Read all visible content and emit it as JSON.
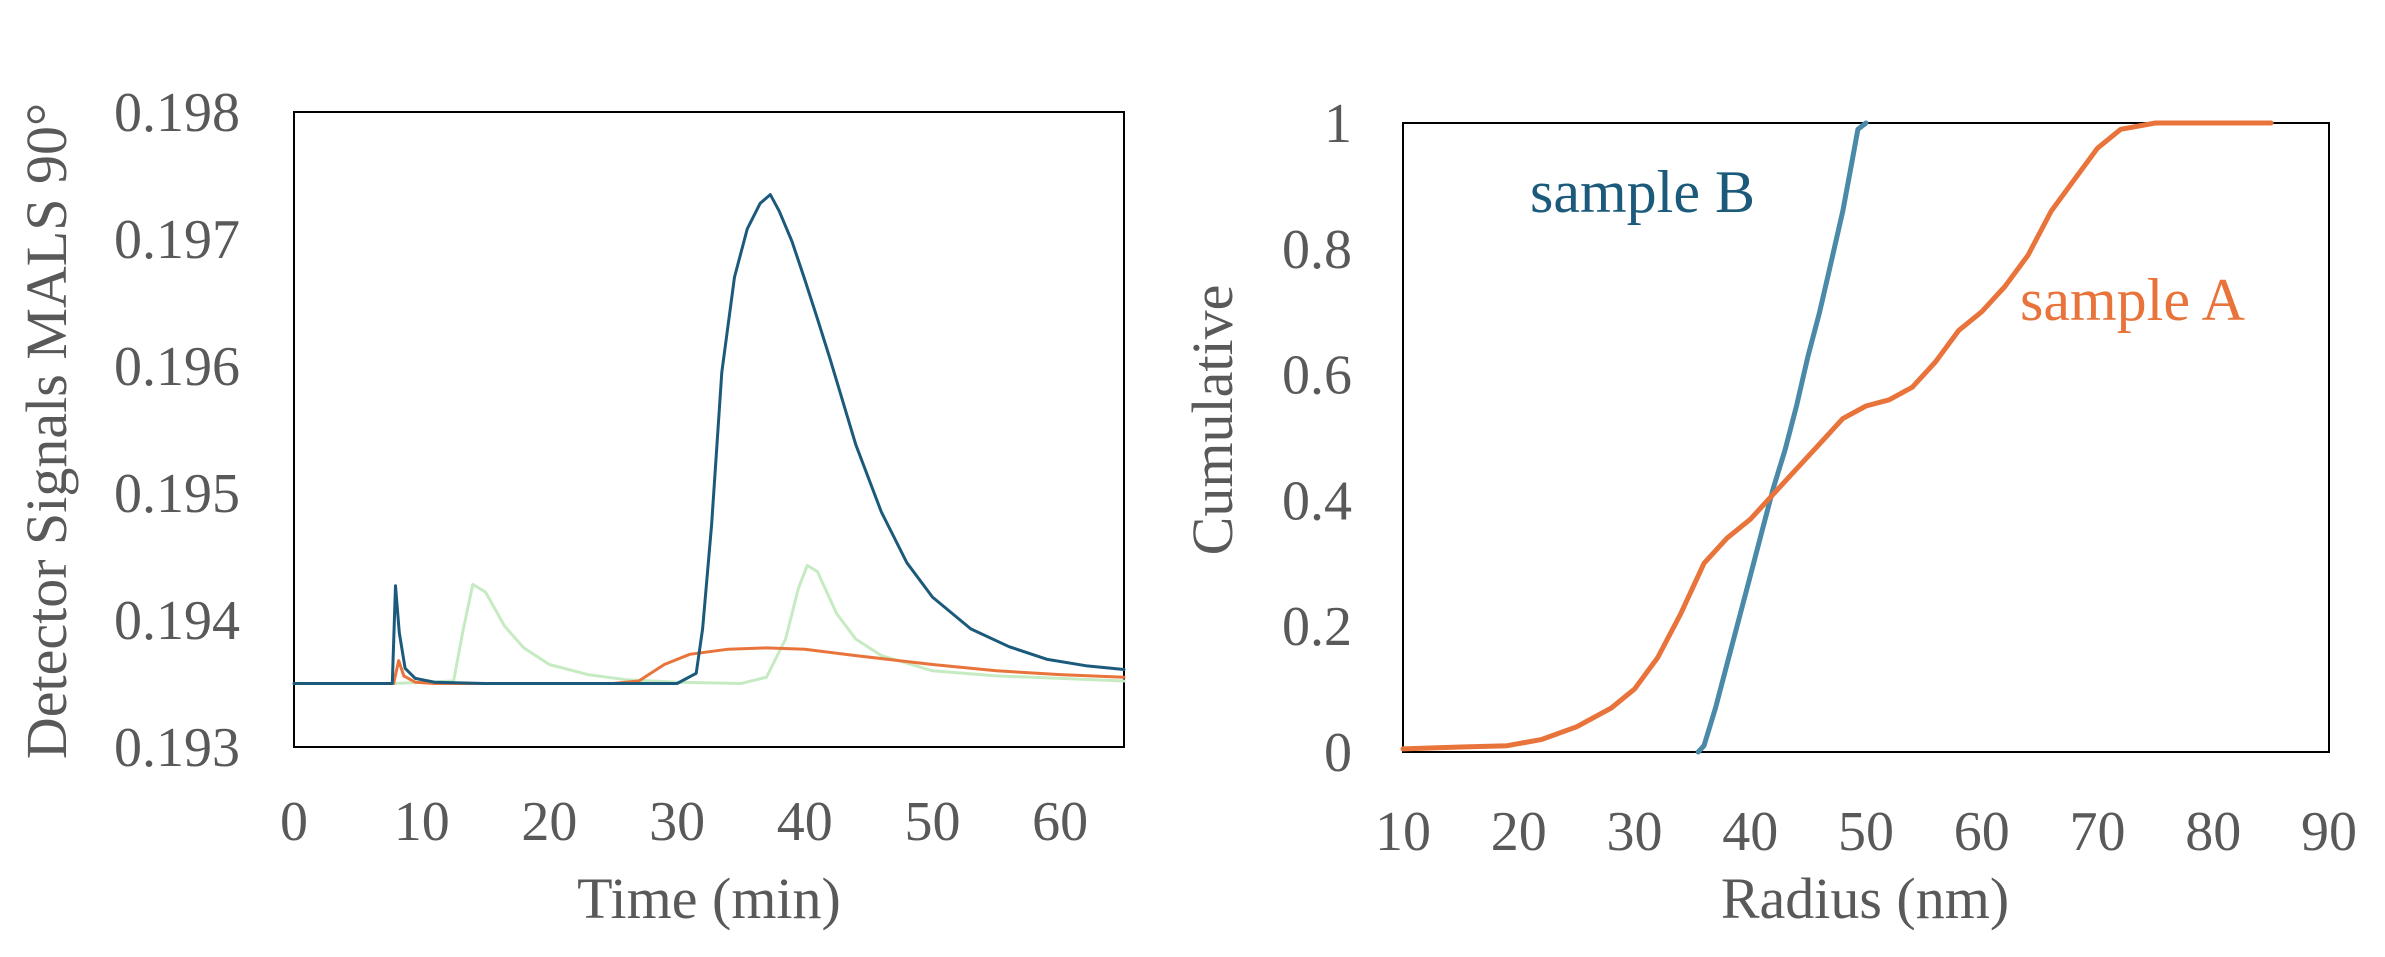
{
  "colors": {
    "dark_blue": "#1b5a7a",
    "orange": "#e8743b",
    "light_green": "#c6ebc2",
    "steel_blue": "#4a89a8",
    "text": "#595959"
  },
  "chart_data": [
    {
      "type": "line",
      "xlabel": "Time (min)",
      "ylabel": "Detector Signals MALS 90°",
      "xlim": [
        0,
        65
      ],
      "ylim": [
        0.193,
        0.198
      ],
      "x_ticks": [
        "0",
        "10",
        "20",
        "30",
        "40",
        "50",
        "60"
      ],
      "y_ticks": [
        "0.193",
        "0.194",
        "0.195",
        "0.196",
        "0.197",
        "0.198"
      ],
      "x_tick_values": [
        0,
        10,
        20,
        30,
        40,
        50,
        60
      ],
      "y_tick_values": [
        0.193,
        0.194,
        0.195,
        0.196,
        0.197,
        0.198
      ],
      "grid": false,
      "series": [
        {
          "color": "#c6ebc2",
          "x": [
            0,
            7.8,
            12.5,
            13.2,
            14.0,
            15.0,
            16.5,
            18.0,
            20.0,
            23.0,
            26.0,
            30.0,
            35.0,
            37.0,
            38.5,
            39.5,
            40.2,
            41.0,
            42.5,
            44.0,
            46.0,
            50.0,
            55.0,
            60.0,
            65.0
          ],
          "y": [
            0.1935,
            0.1935,
            0.19352,
            0.1939,
            0.19428,
            0.19422,
            0.19395,
            0.19378,
            0.19365,
            0.19357,
            0.19353,
            0.19351,
            0.1935,
            0.19355,
            0.19385,
            0.19425,
            0.19443,
            0.19438,
            0.19405,
            0.19385,
            0.19372,
            0.1936,
            0.19356,
            0.19354,
            0.19352
          ]
        },
        {
          "color": "#e8743b",
          "x": [
            0,
            7.8,
            8.2,
            8.6,
            9.5,
            11.0,
            15.0,
            20.0,
            25.0,
            27.0,
            29.0,
            31.0,
            34.0,
            37.0,
            40.0,
            44.0,
            50.0,
            55.0,
            60.0,
            65.0
          ],
          "y": [
            0.1935,
            0.1935,
            0.19368,
            0.19356,
            0.19351,
            0.1935,
            0.1935,
            0.1935,
            0.1935,
            0.19352,
            0.19365,
            0.19373,
            0.19377,
            0.19378,
            0.19377,
            0.19372,
            0.19365,
            0.1936,
            0.19357,
            0.19355
          ]
        },
        {
          "color": "#1b5a7a",
          "x": [
            0,
            7.7,
            7.95,
            8.25,
            8.7,
            9.5,
            11.0,
            15.0,
            20.0,
            25.0,
            30.0,
            31.5,
            32.0,
            32.7,
            33.5,
            34.5,
            35.5,
            36.5,
            37.3,
            38.0,
            39.0,
            40.0,
            41.0,
            42.0,
            44.0,
            46.0,
            48.0,
            50.0,
            53.0,
            56.0,
            59.0,
            62.0,
            65.0
          ],
          "y": [
            0.1935,
            0.1935,
            0.19427,
            0.1939,
            0.19362,
            0.19354,
            0.19351,
            0.1935,
            0.1935,
            0.1935,
            0.1935,
            0.19358,
            0.19393,
            0.19475,
            0.19595,
            0.1967,
            0.19708,
            0.19728,
            0.19735,
            0.19722,
            0.19698,
            0.19668,
            0.19637,
            0.19605,
            0.19538,
            0.19485,
            0.19445,
            0.19418,
            0.19393,
            0.19379,
            0.19369,
            0.19364,
            0.19361
          ]
        }
      ]
    },
    {
      "type": "line",
      "xlabel": "Radius (nm)",
      "ylabel": "Cumulative",
      "xlim": [
        10,
        90
      ],
      "ylim": [
        0,
        1
      ],
      "x_ticks": [
        "10",
        "20",
        "30",
        "40",
        "50",
        "60",
        "70",
        "80",
        "90"
      ],
      "y_ticks": [
        "0",
        "0.2",
        "0.4",
        "0.6",
        "0.8",
        "1"
      ],
      "x_tick_values": [
        10,
        20,
        30,
        40,
        50,
        60,
        70,
        80,
        90
      ],
      "y_tick_values": [
        0,
        0.2,
        0.4,
        0.6,
        0.8,
        1
      ],
      "grid": false,
      "annotations": [
        "sample B",
        "sample A"
      ],
      "series": [
        {
          "name": "sample B",
          "color": "#4a89a8",
          "x": [
            35.5,
            36.0,
            37.0,
            38.0,
            39.0,
            40.0,
            41.0,
            42.0,
            43.0,
            44.0,
            45.0,
            46.0,
            47.0,
            48.0,
            48.7,
            49.3,
            50.0
          ],
          "y": [
            0.0,
            0.01,
            0.07,
            0.14,
            0.21,
            0.28,
            0.35,
            0.42,
            0.48,
            0.55,
            0.63,
            0.7,
            0.78,
            0.86,
            0.93,
            0.99,
            1.0
          ]
        },
        {
          "name": "sample A",
          "color": "#e8743b",
          "x": [
            10,
            15,
            19,
            22,
            25,
            28,
            30,
            32,
            34,
            36,
            38,
            40,
            42,
            44,
            46,
            48,
            50,
            52,
            54,
            56,
            58,
            60,
            62,
            64,
            66,
            68,
            70,
            72,
            75,
            80,
            85
          ],
          "y": [
            0.005,
            0.008,
            0.01,
            0.02,
            0.04,
            0.07,
            0.1,
            0.15,
            0.22,
            0.3,
            0.34,
            0.37,
            0.41,
            0.45,
            0.49,
            0.53,
            0.55,
            0.56,
            0.58,
            0.62,
            0.67,
            0.7,
            0.74,
            0.79,
            0.86,
            0.91,
            0.96,
            0.99,
            1.0,
            1.0,
            1.0
          ]
        }
      ]
    }
  ]
}
